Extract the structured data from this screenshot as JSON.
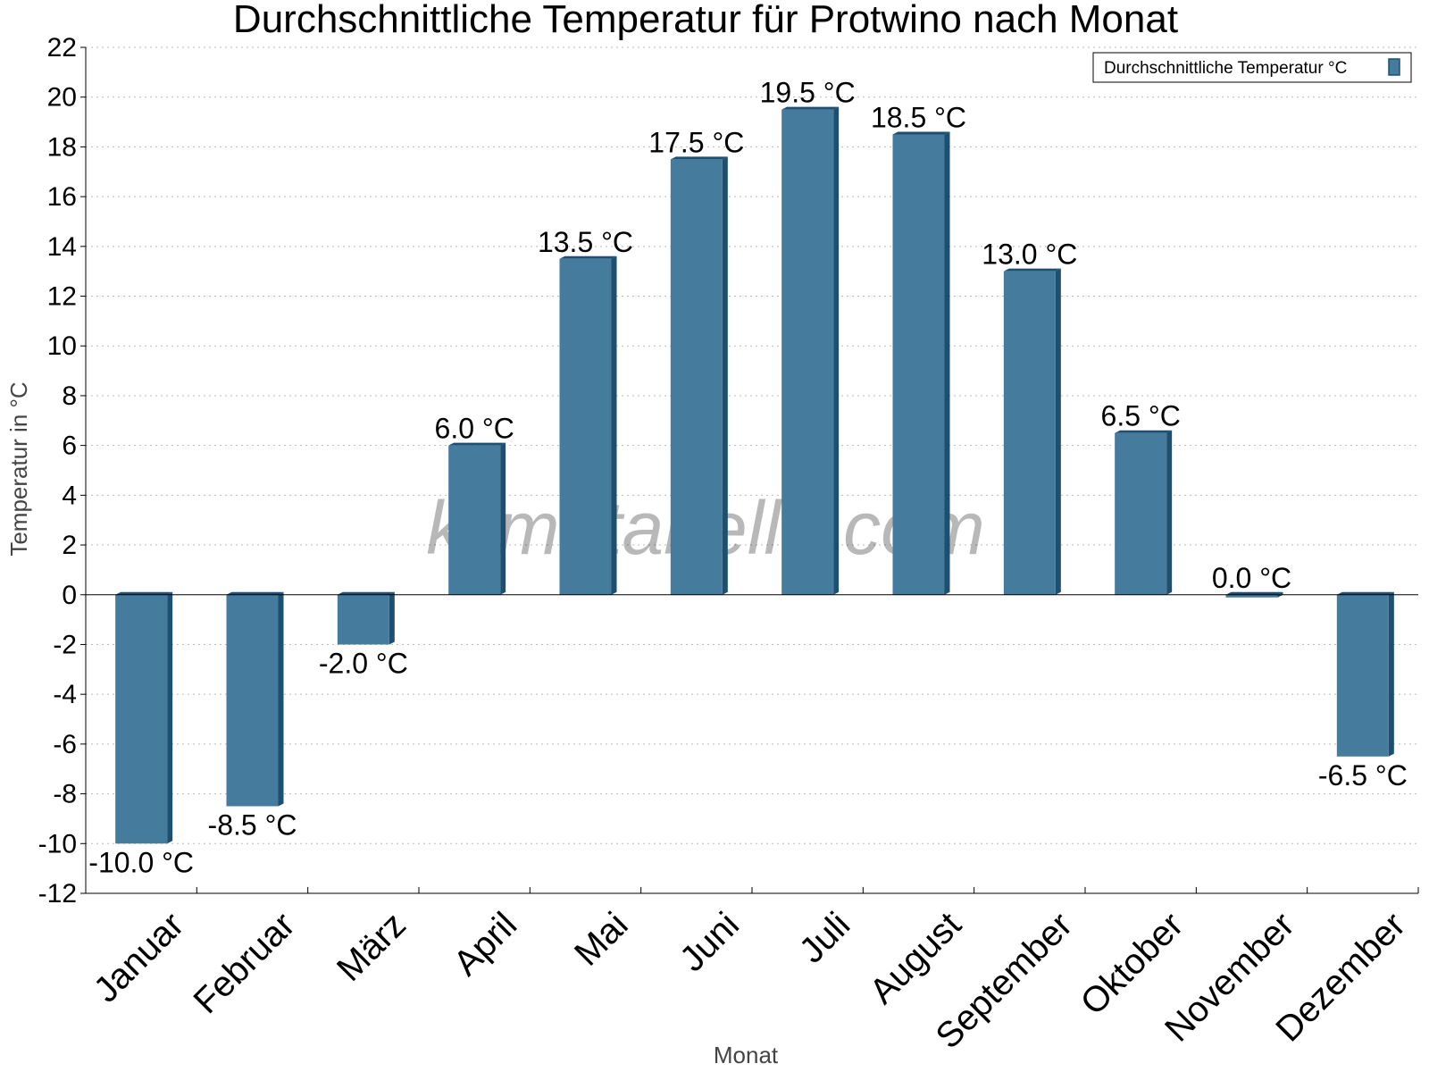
{
  "chart_data": {
    "type": "bar",
    "title": "Durchschnittliche Temperatur für Protwino nach Monat",
    "xlabel": "Monat",
    "ylabel": "Temperatur in °C",
    "categories": [
      "Januar",
      "Februar",
      "März",
      "April",
      "Mai",
      "Juni",
      "Juli",
      "August",
      "September",
      "Oktober",
      "November",
      "Dezember"
    ],
    "series": [
      {
        "name": "Durchschnittliche Temperatur °C",
        "values": [
          -10.0,
          -8.5,
          -2.0,
          6.0,
          13.5,
          17.5,
          19.5,
          18.5,
          13.0,
          6.5,
          0.0,
          -6.5
        ],
        "labels": [
          "-10.0 °C",
          "-8.5 °C",
          "-2.0 °C",
          "6.0 °C",
          "13.5 °C",
          "17.5 °C",
          "19.5 °C",
          "18.5 °C",
          "13.0 °C",
          "6.5 °C",
          "0.0 °C",
          "-6.5 °C"
        ]
      }
    ],
    "ylim": [
      -12,
      22
    ],
    "yticks": [
      22,
      20,
      18,
      16,
      14,
      12,
      10,
      8,
      6,
      4,
      2,
      0,
      -2,
      -4,
      -6,
      -8,
      -10,
      -12
    ],
    "grid": true,
    "legend_position": "top-right",
    "bar_color": "#457b9d",
    "bar_side_color": "#1d4f70",
    "watermark": "klimatabelle.com"
  }
}
